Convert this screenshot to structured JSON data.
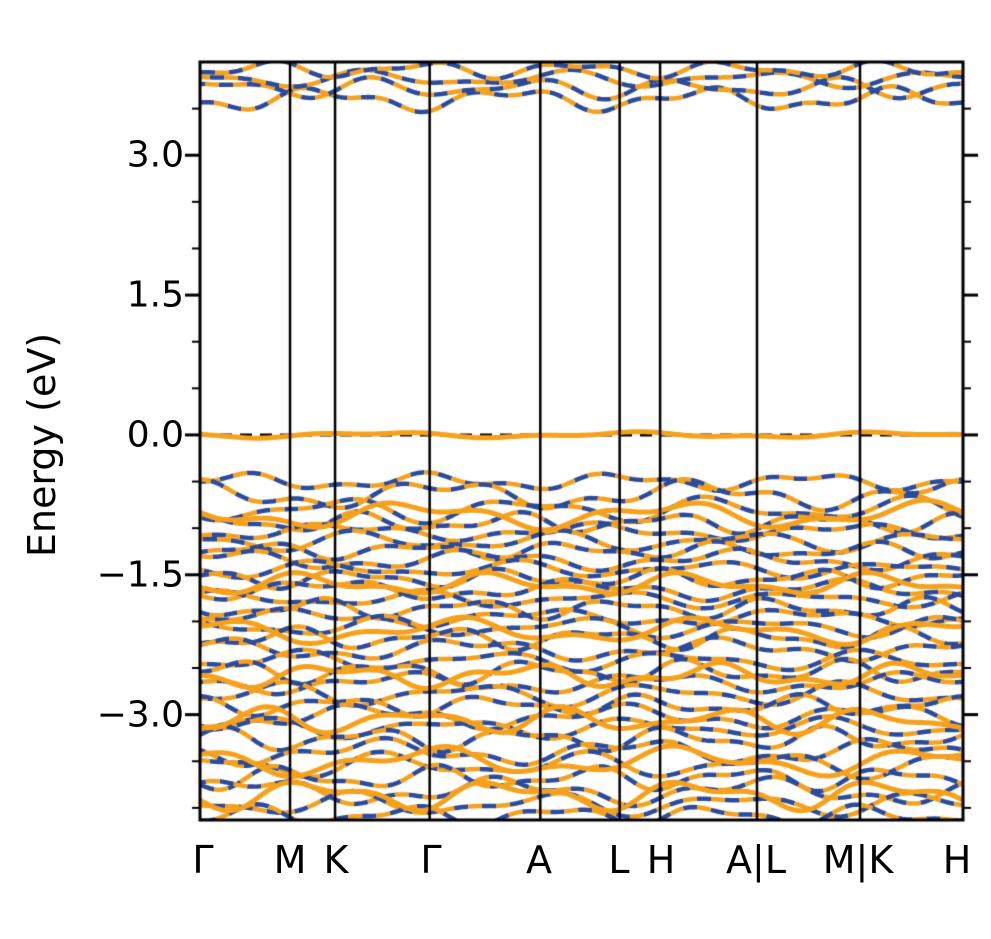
{
  "figure": {
    "background": "#ffffff",
    "frame_color": "#000000",
    "fermi_line_color": "#000000"
  },
  "chart_data": {
    "type": "line",
    "title": "",
    "xlabel": "",
    "ylabel": "Energy (eV)",
    "ylim": [
      -4.13,
      4.0
    ],
    "yticks_major": [
      3.0,
      1.5,
      0.0,
      -1.5,
      -3.0
    ],
    "ytick_labels": [
      "3.0",
      "1.5",
      "0.0",
      "−1.5",
      "−3.0"
    ],
    "minor_tick_step": 0.5,
    "grid": false,
    "legend": "none",
    "fermi_level": 0.0,
    "kpath": {
      "labels": [
        "Γ",
        "M",
        "K",
        "Γ",
        "A",
        "L",
        "H",
        "A|L",
        "M|K",
        "H"
      ],
      "positions": [
        0,
        0.118,
        0.177,
        0.301,
        0.446,
        0.55,
        0.603,
        0.73,
        0.865,
        1.0
      ]
    },
    "series": [
      {
        "name": "series-blue-dashed",
        "color": "#2b4b9c",
        "style": "dashed"
      },
      {
        "name": "series-orange-dashed",
        "color": "#f6a11b",
        "style": "dashed"
      }
    ],
    "bands": [
      {
        "e": 3.6,
        "amp": 0.14,
        "f1": 4,
        "p1": 0.62,
        "f2": 9,
        "p2": 0.1,
        "style": "dual"
      },
      {
        "e": 3.72,
        "amp": 0.12,
        "f1": 5,
        "p1": 0.1,
        "f2": 8,
        "p2": 0.5,
        "style": "dual"
      },
      {
        "e": 3.82,
        "amp": 0.1,
        "f1": 4,
        "p1": 0.35,
        "f2": 7,
        "p2": 0.8,
        "style": "dual"
      },
      {
        "e": 3.92,
        "amp": 0.1,
        "f1": 5,
        "p1": 0.8,
        "f2": 9,
        "p2": 0.3,
        "style": "dual"
      },
      {
        "e": -0.5,
        "amp": 0.1,
        "f1": 4,
        "p1": 0.05,
        "f2": 9,
        "p2": 0.6,
        "style": "dual"
      },
      {
        "e": -0.64,
        "amp": 0.17,
        "f1": 3,
        "p1": 0.3,
        "f2": 8,
        "p2": 0.2,
        "style": "dual"
      },
      {
        "e": -0.8,
        "amp": 0.15,
        "f1": 4,
        "p1": 0.55,
        "f2": 7,
        "p2": 0.7,
        "style": "dual"
      },
      {
        "e": -0.94,
        "amp": 0.12,
        "f1": 5,
        "p1": 0.2,
        "f2": 9,
        "p2": 0.4,
        "style": "dual"
      },
      {
        "e": -1.04,
        "amp": 0.1,
        "f1": 3,
        "p1": 0.7,
        "f2": 8,
        "p2": 0.1,
        "style": "dual"
      },
      {
        "e": -1.14,
        "amp": 0.12,
        "f1": 4,
        "p1": 0.4,
        "f2": 7,
        "p2": 0.9,
        "style": "dual"
      },
      {
        "e": -1.24,
        "amp": 0.1,
        "f1": 5,
        "p1": 0.85,
        "f2": 9,
        "p2": 0.2,
        "style": "dual"
      },
      {
        "e": -1.34,
        "amp": 0.12,
        "f1": 3,
        "p1": 0.15,
        "f2": 8,
        "p2": 0.6,
        "style": "dual"
      },
      {
        "e": -1.44,
        "amp": 0.1,
        "f1": 4,
        "p1": 0.6,
        "f2": 7,
        "p2": 0.3,
        "style": "dual"
      },
      {
        "e": -1.54,
        "amp": 0.11,
        "f1": 5,
        "p1": 0.25,
        "f2": 9,
        "p2": 0.8,
        "style": "dual"
      },
      {
        "e": -1.66,
        "amp": 0.12,
        "f1": 3,
        "p1": 0.75,
        "f2": 8,
        "p2": 0.45,
        "style": "dual"
      },
      {
        "e": -1.76,
        "amp": 0.1,
        "f1": 4,
        "p1": 0.1,
        "f2": 7,
        "p2": 0.15,
        "style": "dual"
      },
      {
        "e": -1.86,
        "amp": 0.12,
        "f1": 5,
        "p1": 0.5,
        "f2": 9,
        "p2": 0.7,
        "style": "dual"
      },
      {
        "e": -1.96,
        "amp": 0.1,
        "f1": 3,
        "p1": 0.9,
        "f2": 8,
        "p2": 0.35,
        "style": "dual"
      },
      {
        "e": -2.06,
        "amp": 0.12,
        "f1": 4,
        "p1": 0.3,
        "f2": 7,
        "p2": 0.55,
        "style": "dual"
      },
      {
        "e": -2.18,
        "amp": 0.13,
        "f1": 5,
        "p1": 0.65,
        "f2": 9,
        "p2": 0.05,
        "style": "dual"
      },
      {
        "e": -2.3,
        "amp": 0.13,
        "f1": 3,
        "p1": 0.2,
        "f2": 8,
        "p2": 0.85,
        "style": "dual"
      },
      {
        "e": -2.42,
        "amp": 0.12,
        "f1": 4,
        "p1": 0.75,
        "f2": 7,
        "p2": 0.25,
        "style": "dual"
      },
      {
        "e": -2.54,
        "amp": 0.14,
        "f1": 5,
        "p1": 0.05,
        "f2": 9,
        "p2": 0.6,
        "style": "dual"
      },
      {
        "e": -2.66,
        "amp": 0.12,
        "f1": 3,
        "p1": 0.45,
        "f2": 8,
        "p2": 0.95,
        "style": "dual"
      },
      {
        "e": -2.78,
        "amp": 0.14,
        "f1": 4,
        "p1": 0.85,
        "f2": 7,
        "p2": 0.4,
        "style": "dual"
      },
      {
        "e": -2.9,
        "amp": 0.12,
        "f1": 5,
        "p1": 0.35,
        "f2": 9,
        "p2": 0.15,
        "style": "dual"
      },
      {
        "e": -3.02,
        "amp": 0.14,
        "f1": 3,
        "p1": 0.6,
        "f2": 8,
        "p2": 0.75,
        "style": "dual"
      },
      {
        "e": -3.14,
        "amp": 0.12,
        "f1": 4,
        "p1": 0.95,
        "f2": 7,
        "p2": 0.5,
        "style": "dual"
      },
      {
        "e": -3.26,
        "amp": 0.14,
        "f1": 5,
        "p1": 0.15,
        "f2": 9,
        "p2": 0.9,
        "style": "dual"
      },
      {
        "e": -3.4,
        "amp": 0.15,
        "f1": 3,
        "p1": 0.55,
        "f2": 8,
        "p2": 0.3,
        "style": "dual"
      },
      {
        "e": -3.54,
        "amp": 0.15,
        "f1": 4,
        "p1": 0.25,
        "f2": 7,
        "p2": 0.65,
        "style": "dual"
      },
      {
        "e": -3.68,
        "amp": 0.14,
        "f1": 5,
        "p1": 0.7,
        "f2": 9,
        "p2": 0.45,
        "style": "dual"
      },
      {
        "e": -3.82,
        "amp": 0.16,
        "f1": 3,
        "p1": 0.05,
        "f2": 8,
        "p2": 0.2,
        "style": "dual"
      },
      {
        "e": -3.96,
        "amp": 0.14,
        "f1": 4,
        "p1": 0.45,
        "f2": 7,
        "p2": 0.85,
        "style": "dual"
      },
      {
        "e": -4.08,
        "amp": 0.12,
        "f1": 5,
        "p1": 0.9,
        "f2": 9,
        "p2": 0.55,
        "style": "dual"
      },
      {
        "e": -0.86,
        "amp": 0.16,
        "f1": 3,
        "p1": 0.4,
        "f2": 7,
        "p2": 0.6,
        "style": "solid"
      },
      {
        "e": -1.6,
        "amp": 0.13,
        "f1": 4,
        "p1": 0.7,
        "f2": 8,
        "p2": 0.3,
        "style": "solid"
      },
      {
        "e": -2.1,
        "amp": 0.15,
        "f1": 3,
        "p1": 0.25,
        "f2": 7,
        "p2": 0.8,
        "style": "solid"
      },
      {
        "e": -2.58,
        "amp": 0.14,
        "f1": 4,
        "p1": 0.55,
        "f2": 9,
        "p2": 0.1,
        "style": "solid"
      },
      {
        "e": -3.06,
        "amp": 0.15,
        "f1": 5,
        "p1": 0.85,
        "f2": 8,
        "p2": 0.5,
        "style": "solid"
      },
      {
        "e": -3.5,
        "amp": 0.17,
        "f1": 3,
        "p1": 0.35,
        "f2": 7,
        "p2": 0.95,
        "style": "solid"
      },
      {
        "e": -3.86,
        "amp": 0.18,
        "f1": 4,
        "p1": 0.65,
        "f2": 8,
        "p2": 0.4,
        "style": "solid"
      },
      {
        "e": 0.0,
        "amp": 0.035,
        "f1": 3,
        "p1": 0.55,
        "f2": 7,
        "p2": 0.2,
        "style": "solid"
      }
    ]
  }
}
